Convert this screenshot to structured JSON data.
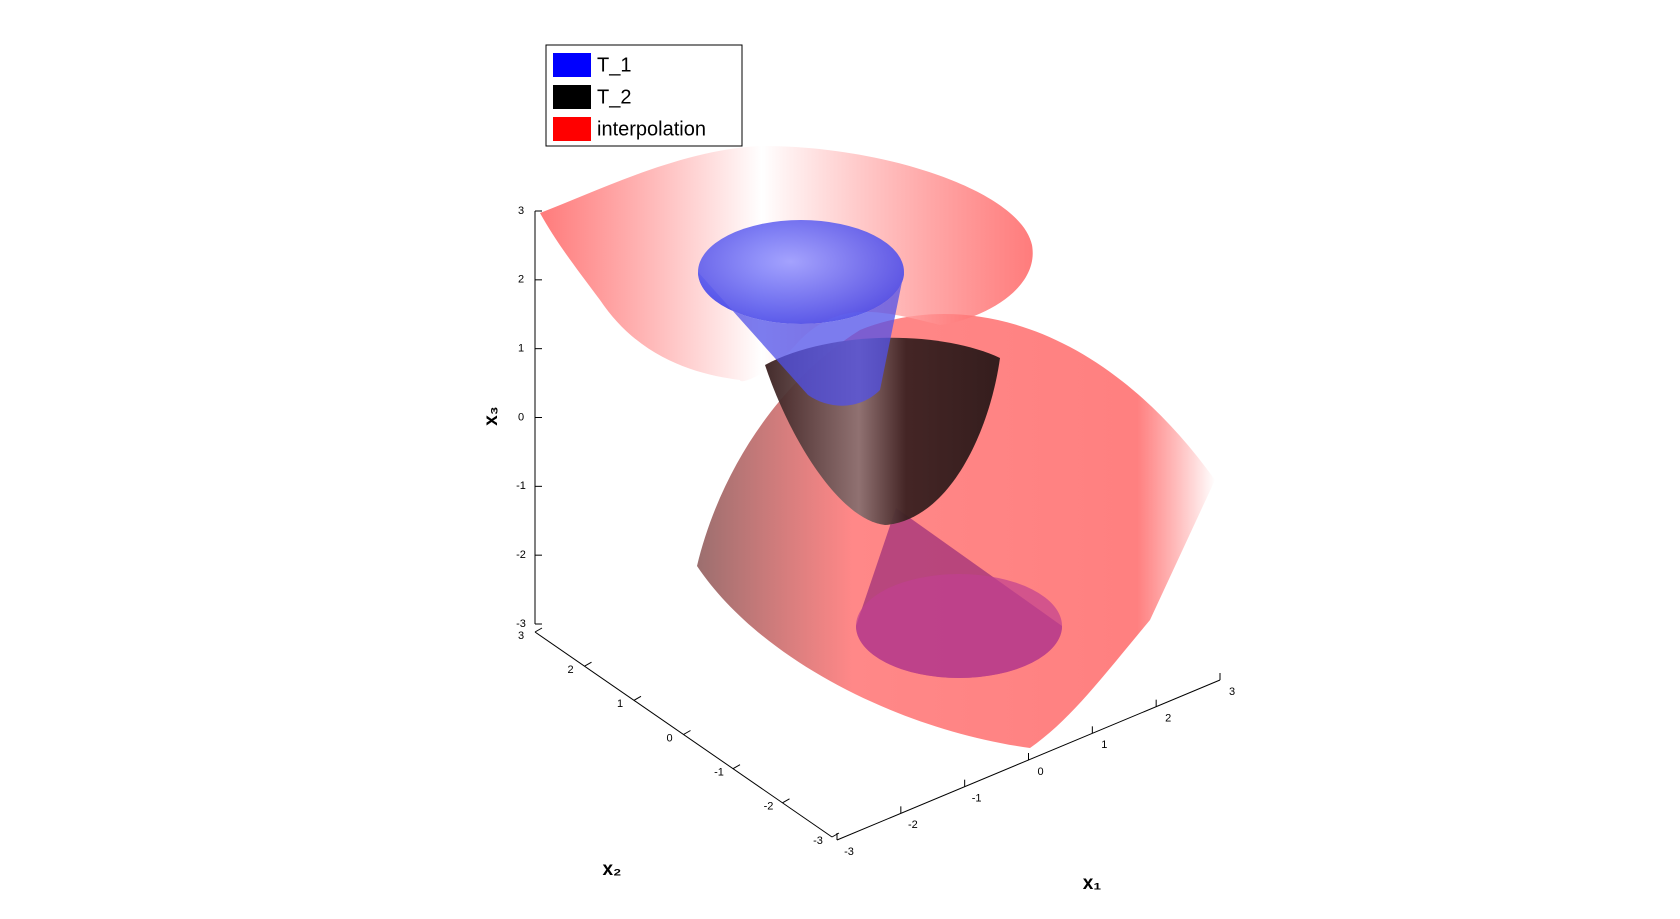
{
  "chart_data": {
    "type": "surface3d",
    "series": [
      {
        "name": "T_1",
        "color": "#0000ff"
      },
      {
        "name": "T_2",
        "color": "#000000"
      },
      {
        "name": "interpolation",
        "color": "#ff0000"
      }
    ],
    "xlabel": "x₁",
    "ylabel": "x₂",
    "zlabel": "x₃",
    "xlim": [
      -3,
      3
    ],
    "ylim": [
      -3,
      3
    ],
    "zlim": [
      -3,
      3
    ],
    "xticks": [
      -3,
      -2,
      -1,
      0,
      1,
      2,
      3
    ],
    "yticks": [
      -3,
      -2,
      -1,
      0,
      1,
      2,
      3
    ],
    "zticks": [
      -3,
      -2,
      -1,
      0,
      1,
      2,
      3
    ],
    "legend": "top-left"
  }
}
